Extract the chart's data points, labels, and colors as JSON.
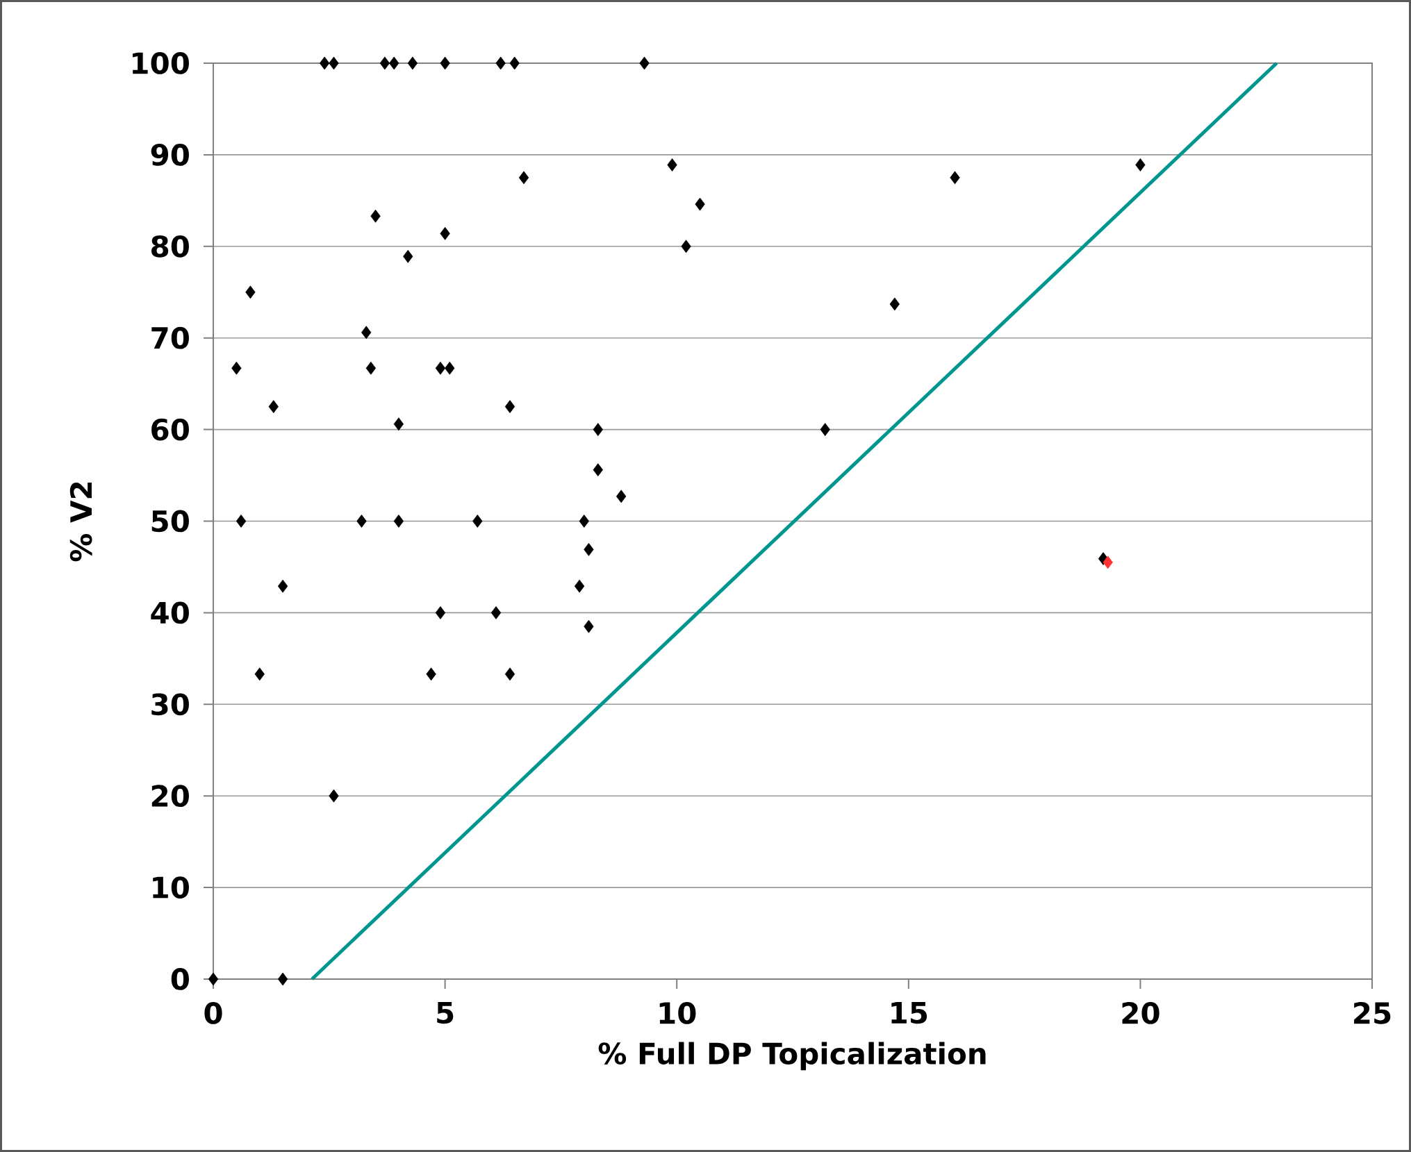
{
  "chart_data": {
    "type": "scatter",
    "xlabel": "% Full DP Topicalization",
    "ylabel": "% V2",
    "xlim": [
      0,
      25
    ],
    "ylim": [
      0,
      100
    ],
    "xticks": [
      0,
      5,
      10,
      15,
      20,
      25
    ],
    "yticks": [
      0,
      10,
      20,
      30,
      40,
      50,
      60,
      70,
      80,
      90,
      100
    ],
    "grid": "y",
    "marker": "diamond",
    "series": [
      {
        "color": "#000000",
        "x": [
          0,
          1.5,
          2.4,
          2.6,
          3.7,
          3.9,
          4.3,
          5.0,
          6.2,
          6.5,
          9.3,
          9.9,
          6.7,
          10.5,
          3.5,
          5.0,
          10.2,
          4.2,
          0.8,
          0.5,
          3.3,
          3.4,
          4.9,
          5.1,
          1.3,
          6.4,
          4.0,
          8.3,
          8.3,
          8.8,
          0.6,
          3.2,
          4.0,
          5.7,
          8.0,
          8.1,
          1.5,
          7.9,
          4.9,
          6.1,
          8.1,
          1.0,
          4.7,
          6.4,
          2.6,
          13.2,
          14.7,
          16.0,
          20.0,
          19.2
        ],
        "values": [
          0,
          0,
          100,
          100,
          100,
          100,
          100,
          100,
          100,
          100,
          100,
          88.9,
          87.5,
          84.6,
          83.3,
          81.4,
          80,
          78.9,
          75,
          66.7,
          70.6,
          66.7,
          66.7,
          66.7,
          62.5,
          62.5,
          60.6,
          60,
          55.6,
          52.7,
          50,
          50,
          50,
          50,
          50,
          46.9,
          42.9,
          42.9,
          40,
          40,
          38.5,
          33.3,
          33.3,
          33.3,
          20,
          60,
          73.7,
          87.5,
          88.9,
          45.9
        ]
      },
      {
        "color": "#ff3333",
        "x": [
          19.3
        ],
        "values": [
          45.5
        ]
      },
      {
        "type": "line",
        "marker": "none",
        "color": "#009690",
        "x": [
          2.13,
          22.94
        ],
        "values": [
          0,
          100
        ]
      }
    ]
  }
}
